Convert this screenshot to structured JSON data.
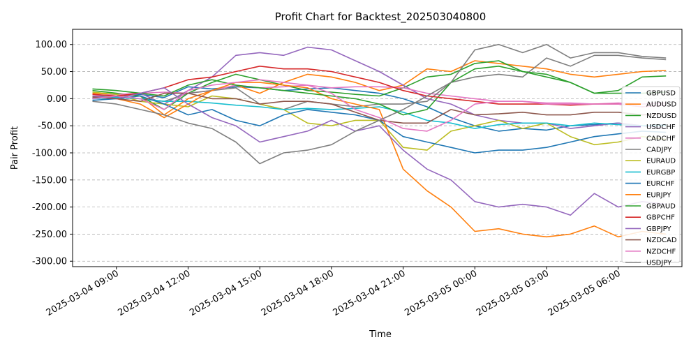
{
  "chart_data": {
    "type": "line",
    "title": "Profit Chart for Backtest_202503040800",
    "xlabel": "Time",
    "ylabel": "Pair Profit",
    "xlim": [
      "2025-03-04 07:10",
      "2025-03-05 08:40"
    ],
    "ylim": [
      -310,
      128
    ],
    "x_ticks": [
      "2025-03-04 09:00",
      "2025-03-04 12:00",
      "2025-03-04 15:00",
      "2025-03-04 18:00",
      "2025-03-04 21:00",
      "2025-03-05 00:00",
      "2025-03-05 03:00",
      "2025-03-05 06:00"
    ],
    "y_ticks": [
      "100.00",
      "50.00",
      "0.00",
      "-50.00",
      "-100.00",
      "-150.00",
      "-200.00",
      "-250.00",
      "-300.00"
    ],
    "y_tick_values": [
      100,
      50,
      0,
      -50,
      -100,
      -150,
      -200,
      -250,
      -300
    ],
    "grid": true,
    "legend_position": "right",
    "x_times": [
      "2025-03-04 08:00",
      "2025-03-04 09:00",
      "2025-03-04 10:00",
      "2025-03-04 11:00",
      "2025-03-04 12:00",
      "2025-03-04 13:00",
      "2025-03-04 14:00",
      "2025-03-04 15:00",
      "2025-03-04 16:00",
      "2025-03-04 17:00",
      "2025-03-04 18:00",
      "2025-03-04 19:00",
      "2025-03-04 20:00",
      "2025-03-04 21:00",
      "2025-03-04 22:00",
      "2025-03-04 23:00",
      "2025-03-05 00:00",
      "2025-03-05 01:00",
      "2025-03-05 02:00",
      "2025-03-05 03:00",
      "2025-03-05 04:00",
      "2025-03-05 05:00",
      "2025-03-05 06:00",
      "2025-03-05 07:00",
      "2025-03-05 08:00"
    ],
    "series": [
      {
        "name": "GBPUSD",
        "color": "#1f77b4",
        "values": [
          5,
          3,
          8,
          2,
          22,
          18,
          22,
          20,
          15,
          18,
          20,
          15,
          10,
          0,
          -15,
          -35,
          -50,
          -60,
          -55,
          -58,
          -50,
          -48,
          -45,
          -50,
          -48
        ]
      },
      {
        "name": "AUDUSD",
        "color": "#ff7f0e",
        "values": [
          10,
          8,
          5,
          -30,
          0,
          15,
          25,
          10,
          30,
          45,
          40,
          30,
          15,
          25,
          55,
          50,
          70,
          65,
          60,
          55,
          45,
          40,
          45,
          50,
          52
        ]
      },
      {
        "name": "NZDUSD",
        "color": "#2ca02c",
        "values": [
          15,
          10,
          5,
          -20,
          10,
          30,
          45,
          35,
          25,
          15,
          12,
          8,
          5,
          20,
          40,
          45,
          65,
          70,
          50,
          45,
          30,
          10,
          15,
          40,
          42
        ]
      },
      {
        "name": "USDCHF",
        "color": "#9467bd",
        "values": [
          0,
          5,
          10,
          -10,
          15,
          40,
          80,
          85,
          80,
          95,
          90,
          70,
          50,
          25,
          0,
          -10,
          -30,
          -40,
          -45,
          -45,
          -55,
          -50,
          -45,
          -50,
          -55
        ]
      },
      {
        "name": "CADCHF",
        "color": "#e377c2",
        "values": [
          5,
          8,
          10,
          12,
          10,
          15,
          25,
          20,
          22,
          25,
          20,
          22,
          22,
          20,
          10,
          5,
          0,
          -5,
          -5,
          -8,
          -8,
          -10,
          -8,
          -10,
          -8
        ]
      },
      {
        "name": "CADJPY",
        "color": "#7f7f7f",
        "values": [
          2,
          5,
          0,
          -5,
          10,
          15,
          20,
          -10,
          -20,
          -5,
          -10,
          -15,
          -10,
          -10,
          -5,
          30,
          40,
          45,
          40,
          75,
          60,
          80,
          80,
          75,
          72
        ]
      },
      {
        "name": "EURAUD",
        "color": "#bcbd22",
        "values": [
          12,
          8,
          -5,
          -10,
          -15,
          5,
          0,
          -10,
          -20,
          -45,
          -50,
          -40,
          -40,
          -90,
          -95,
          -60,
          -50,
          -40,
          -55,
          -45,
          -70,
          -85,
          -80,
          -70,
          -75
        ]
      },
      {
        "name": "EURGBP",
        "color": "#17becf",
        "values": [
          0,
          2,
          0,
          -5,
          -5,
          -8,
          -12,
          -15,
          -20,
          -18,
          -20,
          -18,
          -15,
          -25,
          -40,
          -45,
          -55,
          -48,
          -45,
          -45,
          -50,
          -45,
          -48,
          -50,
          -50
        ]
      },
      {
        "name": "EURCHF",
        "color": "#1f77b4",
        "values": [
          -3,
          0,
          5,
          -10,
          -30,
          -20,
          -40,
          -50,
          -30,
          -20,
          -25,
          -30,
          -40,
          -70,
          -80,
          -90,
          -100,
          -95,
          -95,
          -90,
          -80,
          -70,
          -65,
          -60,
          -62
        ]
      },
      {
        "name": "EURJPY",
        "color": "#ff7f0e",
        "values": [
          5,
          0,
          -10,
          -35,
          -10,
          15,
          30,
          30,
          25,
          20,
          0,
          -10,
          -20,
          -130,
          -170,
          -200,
          -245,
          -240,
          -250,
          -255,
          -250,
          -235,
          -255,
          -245,
          -250
        ]
      },
      {
        "name": "GBPAUD",
        "color": "#2ca02c",
        "values": [
          18,
          15,
          10,
          5,
          25,
          35,
          25,
          20,
          15,
          10,
          5,
          0,
          -10,
          -30,
          -20,
          30,
          55,
          60,
          50,
          40,
          30,
          10,
          10,
          10,
          12
        ]
      },
      {
        "name": "GBPCHF",
        "color": "#d62728",
        "values": [
          8,
          5,
          10,
          20,
          35,
          40,
          50,
          60,
          55,
          55,
          50,
          40,
          30,
          15,
          5,
          0,
          -5,
          -10,
          -10,
          -10,
          -12,
          -10,
          -10,
          -15,
          -12
        ]
      },
      {
        "name": "GBPJPY",
        "color": "#9467bd",
        "values": [
          5,
          0,
          10,
          20,
          -10,
          -35,
          -50,
          -80,
          -70,
          -60,
          -40,
          -60,
          -50,
          -95,
          -130,
          -150,
          -190,
          -200,
          -195,
          -200,
          -215,
          -175,
          -200,
          -190,
          -195
        ]
      },
      {
        "name": "NZDCAD",
        "color": "#8c564b",
        "values": [
          3,
          0,
          -5,
          10,
          10,
          0,
          0,
          -10,
          -5,
          -5,
          -10,
          -25,
          -40,
          -45,
          -45,
          -20,
          -30,
          -28,
          -25,
          -30,
          -30,
          -25,
          -25,
          -30,
          -28
        ]
      },
      {
        "name": "NZDCHF",
        "color": "#e377c2",
        "values": [
          0,
          5,
          0,
          -20,
          15,
          25,
          30,
          35,
          30,
          25,
          10,
          -20,
          -35,
          -55,
          -60,
          -40,
          -10,
          -5,
          -5,
          -10,
          -10,
          -10,
          -10,
          -15,
          -12
        ]
      },
      {
        "name": "USDJPY",
        "color": "#7f7f7f",
        "values": [
          -5,
          -10,
          -20,
          -30,
          -45,
          -55,
          -80,
          -120,
          -100,
          -95,
          -85,
          -60,
          -40,
          -20,
          5,
          30,
          90,
          100,
          85,
          100,
          75,
          85,
          85,
          78,
          75
        ]
      }
    ]
  }
}
